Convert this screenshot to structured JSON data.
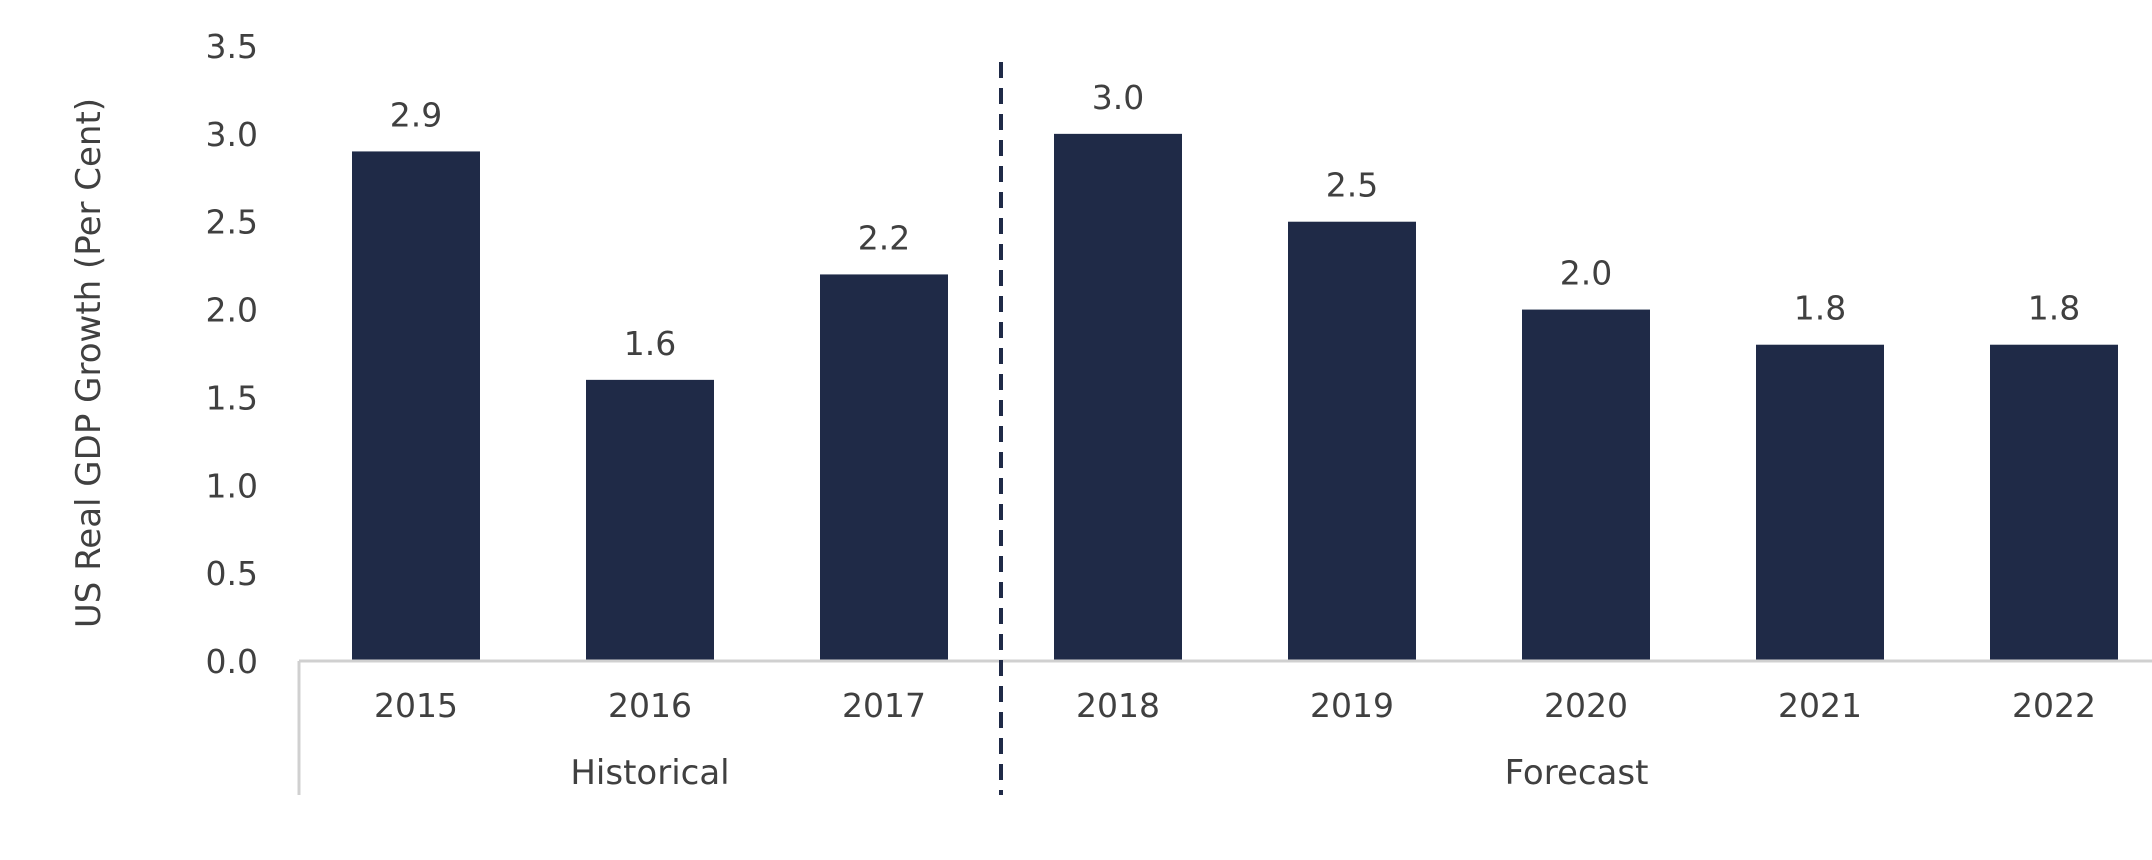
{
  "chart_data": {
    "type": "bar",
    "ylabel": "US Real GDP Growth (Per Cent)",
    "xlabel": "",
    "categories": [
      "2015",
      "2016",
      "2017",
      "2018",
      "2019",
      "2020",
      "2021",
      "2022"
    ],
    "values": [
      2.9,
      1.6,
      2.2,
      3.0,
      2.5,
      2.0,
      1.8,
      1.8
    ],
    "data_labels": [
      "2.9",
      "1.6",
      "2.2",
      "3.0",
      "2.5",
      "2.0",
      "1.8",
      "1.8"
    ],
    "ylim": [
      0,
      3.5
    ],
    "yticks": [
      "0.0",
      "0.5",
      "1.0",
      "1.5",
      "2.0",
      "2.5",
      "3.0",
      "3.5"
    ],
    "groups": [
      {
        "label": "Historical",
        "categories": [
          "2015",
          "2016",
          "2017"
        ]
      },
      {
        "label": "Forecast",
        "categories": [
          "2018",
          "2019",
          "2020",
          "2021",
          "2022"
        ]
      }
    ],
    "divider": "dashed line between Historical and Forecast",
    "grid": false,
    "legend": "none",
    "colors": {
      "bar": "#1f2a47",
      "divider": "#1f2a47",
      "axis": "#d0d0d0",
      "text": "#404040"
    }
  }
}
